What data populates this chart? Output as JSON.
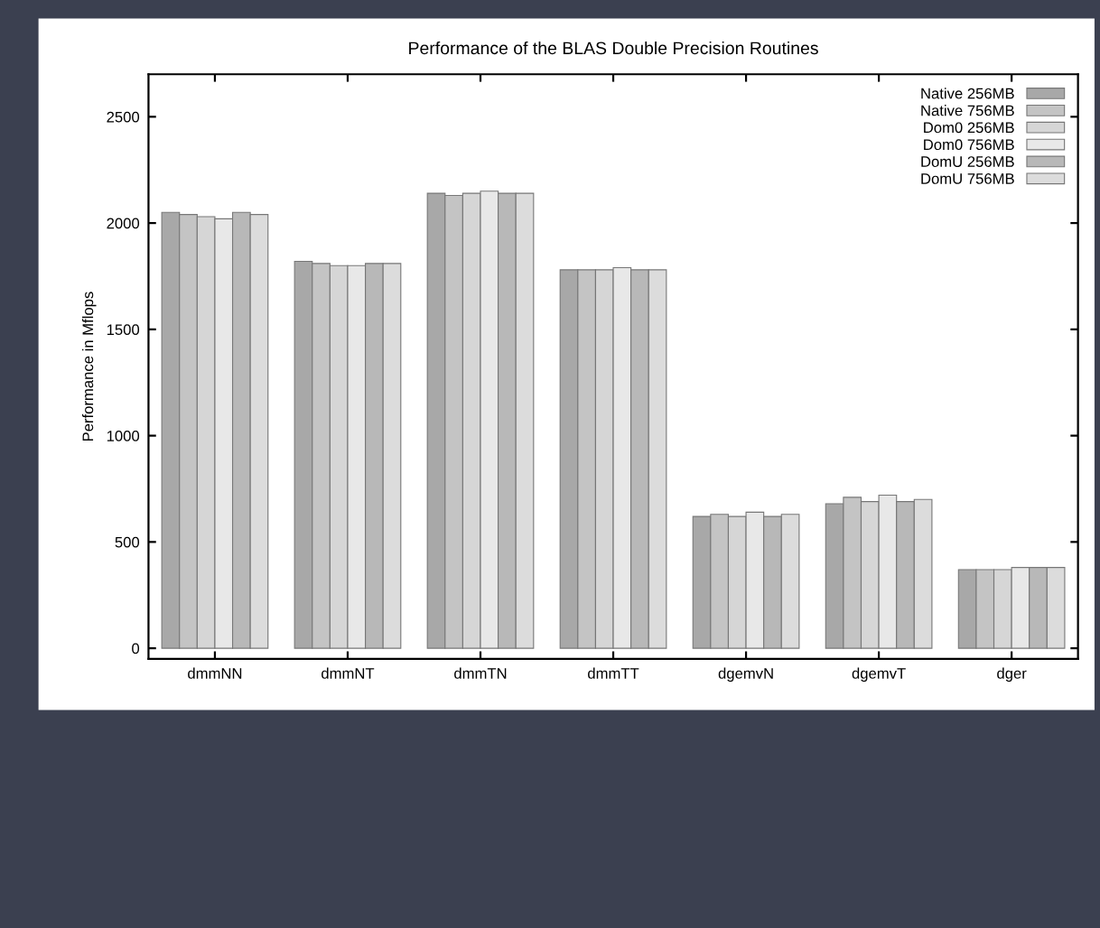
{
  "chart_data": {
    "type": "bar",
    "title": "Performance of the BLAS Double Precision Routines",
    "ylabel": "Performance in Mflops",
    "categories": [
      "dmmNN",
      "dmmNT",
      "dmmTN",
      "dmmTT",
      "dgemvN",
      "dgemvT",
      "dger"
    ],
    "series": [
      {
        "name": "Native 256MB",
        "color": "#a8a8a8",
        "values": [
          2050,
          1820,
          2140,
          1780,
          620,
          680,
          370
        ]
      },
      {
        "name": "Native 756MB",
        "color": "#c4c4c4",
        "values": [
          2040,
          1810,
          2130,
          1780,
          630,
          710,
          370
        ]
      },
      {
        "name": "Dom0 256MB",
        "color": "#d6d6d6",
        "values": [
          2030,
          1800,
          2140,
          1780,
          620,
          690,
          370
        ]
      },
      {
        "name": "Dom0 756MB",
        "color": "#e8e8e8",
        "values": [
          2020,
          1800,
          2150,
          1790,
          640,
          720,
          380
        ]
      },
      {
        "name": "DomU 256MB",
        "color": "#b8b8b8",
        "values": [
          2050,
          1810,
          2140,
          1780,
          620,
          690,
          380
        ]
      },
      {
        "name": "DomU 756MB",
        "color": "#dcdcdc",
        "values": [
          2040,
          1810,
          2140,
          1780,
          630,
          700,
          380
        ]
      }
    ],
    "ylim": [
      -50,
      2700
    ],
    "yticks": [
      0,
      500,
      1000,
      1500,
      2000,
      2500
    ],
    "legend": "top right",
    "grid": false
  }
}
